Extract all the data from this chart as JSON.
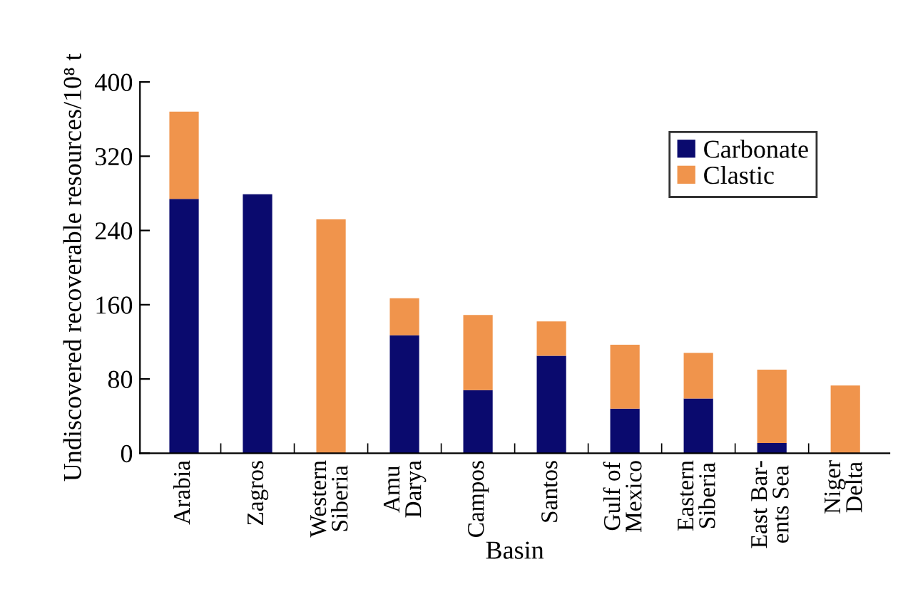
{
  "chart_data": {
    "type": "bar",
    "stacked": true,
    "xlabel": "Basin",
    "ylabel": "Undiscovered recoverable resources/10⁸ t",
    "categories": [
      "Arabia",
      "Zagros",
      "Western\nSiberia",
      "Amu\nDarya",
      "Campos",
      "Santos",
      "Gulf of\nMexico",
      "Eastern\nSiberia",
      "East Bar-\nents Sea",
      "Niger\nDelta"
    ],
    "series": [
      {
        "name": "Carbonate",
        "color": "#0a0a6e",
        "values": [
          274,
          279,
          0,
          127,
          68,
          105,
          48,
          59,
          11,
          0
        ]
      },
      {
        "name": "Clastic",
        "color": "#f0944c",
        "values": [
          94,
          0,
          252,
          40,
          81,
          37,
          69,
          49,
          79,
          73
        ]
      }
    ],
    "ylim": [
      0,
      400
    ],
    "yticks": [
      0,
      80,
      160,
      240,
      320,
      400
    ],
    "grid": false,
    "legend": "top right"
  }
}
